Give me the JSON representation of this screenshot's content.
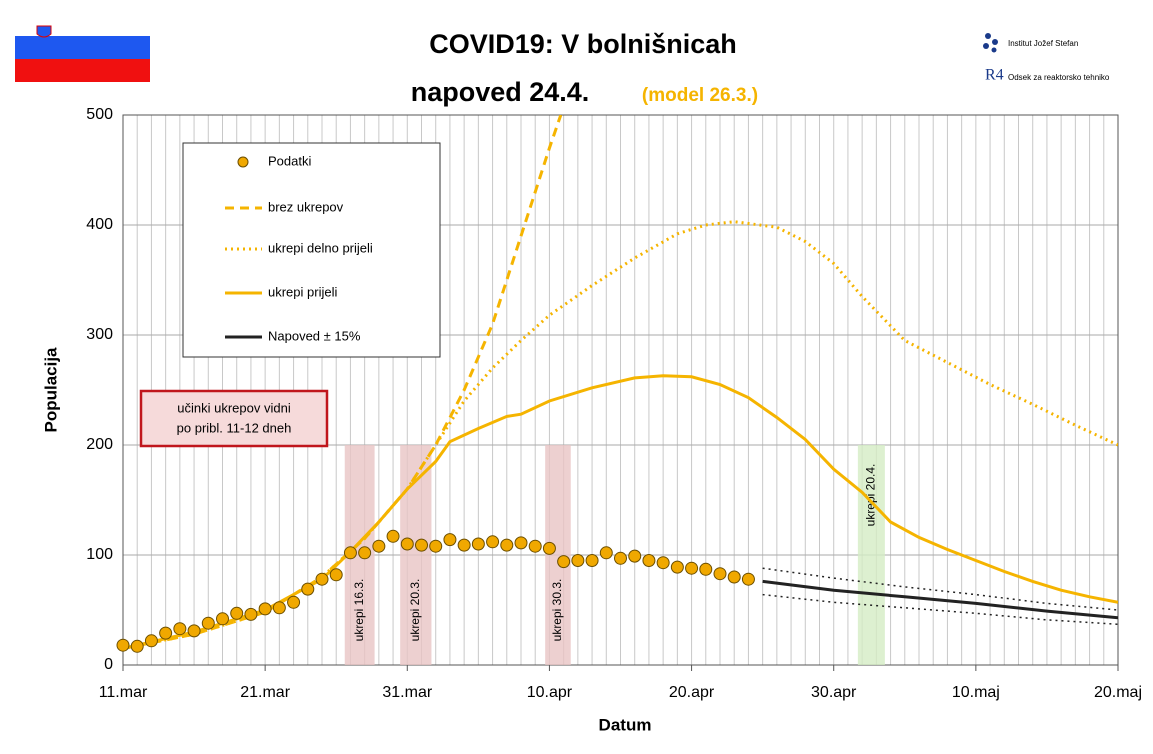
{
  "chart_data": {
    "type": "line",
    "title": "COVID19: V bolnišnicah",
    "subtitle": "napoved 24.4.",
    "subtitle_note": "(model 26.3.)",
    "x_label": "Datum",
    "y_label": "Populacija",
    "logos": [
      "Institut Jožef Stefan",
      "R4",
      "Odsek za reaktorsko tehniko"
    ],
    "xlim": [
      0,
      70
    ],
    "xticks": [
      {
        "value": 0,
        "label": "11.mar"
      },
      {
        "value": 10,
        "label": "21.mar"
      },
      {
        "value": 20,
        "label": "31.mar"
      },
      {
        "value": 30,
        "label": "10.apr"
      },
      {
        "value": 40,
        "label": "20.apr"
      },
      {
        "value": 50,
        "label": "30.apr"
      },
      {
        "value": 60,
        "label": "10.maj"
      },
      {
        "value": 70,
        "label": "20.maj"
      }
    ],
    "ylim": [
      0,
      500
    ],
    "yticks": [
      0,
      100,
      200,
      300,
      400,
      500
    ],
    "grid": true,
    "series": [
      {
        "name": "Podatki",
        "style": "markers",
        "color": "#f0a800",
        "x": [
          0,
          1,
          2,
          3,
          4,
          5,
          6,
          7,
          8,
          9,
          10,
          11,
          12,
          13,
          14,
          15,
          16,
          17,
          18,
          19,
          20,
          21,
          22,
          23,
          24,
          25,
          26,
          27,
          28,
          29,
          30,
          31,
          32,
          33,
          34,
          35,
          36,
          37,
          38,
          39,
          40,
          41,
          42,
          43,
          44
        ],
        "values": [
          18,
          17,
          22,
          29,
          33,
          31,
          38,
          42,
          47,
          46,
          51,
          52,
          57,
          69,
          78,
          82,
          102,
          102,
          108,
          117,
          110,
          109,
          108,
          114,
          109,
          110,
          112,
          109,
          111,
          108,
          106,
          94,
          95,
          95,
          102,
          97,
          99,
          95,
          93,
          89,
          88,
          87,
          83,
          80,
          78
        ]
      },
      {
        "name": "brez ukrepov",
        "style": "dashed",
        "color": "#f5b400",
        "x": [
          0,
          5,
          10,
          14,
          17,
          20,
          22,
          24,
          26,
          28,
          30,
          30.8
        ],
        "values": [
          15,
          28,
          48,
          80,
          115,
          160,
          200,
          250,
          310,
          390,
          470,
          500
        ]
      },
      {
        "name": "ukrepi delno prijeli",
        "style": "dotted",
        "color": "#f5b400",
        "x": [
          0,
          5,
          10,
          14,
          17,
          20,
          22,
          24,
          26,
          28,
          30,
          33,
          36,
          39,
          41,
          43,
          46,
          48,
          50,
          52,
          55,
          58,
          61,
          64,
          67,
          70
        ],
        "values": [
          15,
          28,
          48,
          80,
          115,
          160,
          200,
          240,
          270,
          295,
          318,
          345,
          370,
          392,
          400,
          403,
          398,
          385,
          365,
          335,
          295,
          275,
          255,
          237,
          218,
          200
        ]
      },
      {
        "name": "ukrepi prijeli",
        "style": "solid",
        "color": "#f5b400",
        "x": [
          0,
          5,
          10,
          14,
          16,
          18,
          20,
          22,
          23,
          25,
          27,
          28,
          30,
          33,
          36,
          38,
          40,
          42,
          44,
          46,
          48,
          50,
          52,
          54,
          56,
          58,
          60,
          62,
          64,
          66,
          68,
          70
        ],
        "values": [
          15,
          30,
          50,
          78,
          103,
          130,
          160,
          185,
          203,
          215,
          226,
          228,
          240,
          252,
          261,
          263,
          262,
          255,
          243,
          225,
          205,
          178,
          157,
          130,
          116,
          105,
          95,
          85,
          76,
          68,
          62,
          57
        ]
      },
      {
        "name": "Napoved ± 15%",
        "style": "solid",
        "color": "#222222",
        "x": [
          45,
          50,
          55,
          60,
          65,
          70
        ],
        "values": [
          76,
          68,
          62,
          56,
          49,
          43
        ],
        "upper": [
          88,
          79,
          71,
          64,
          56,
          50
        ],
        "lower": [
          64,
          57,
          52,
          47,
          41,
          37
        ]
      }
    ],
    "spans": [
      {
        "x0": 15.6,
        "x1": 17.7,
        "top": 200,
        "label": "ukrepi 16.3.",
        "color": "#e8c4c4"
      },
      {
        "x0": 19.5,
        "x1": 21.7,
        "top": 200,
        "label": "ukrepi 20.3.",
        "color": "#e8c4c4"
      },
      {
        "x0": 29.7,
        "x1": 31.5,
        "top": 200,
        "label": "ukrepi 30.3.",
        "color": "#e8c4c4"
      },
      {
        "x0": 51.7,
        "x1": 53.6,
        "top": 200,
        "label": "ukrepi 20.4.",
        "color": "#d4ecc4"
      }
    ],
    "note": [
      "učinki ukrepov vidni",
      "po pribl. 11-12 dneh"
    ]
  }
}
